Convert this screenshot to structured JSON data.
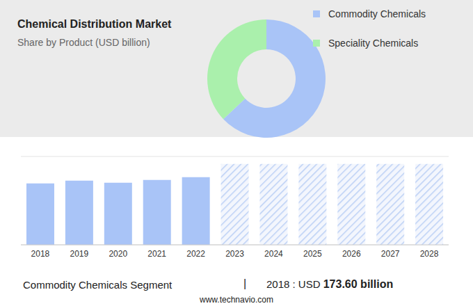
{
  "chart_data": [
    {
      "type": "pie",
      "title": "Chemical Distribution Market",
      "subtitle": "Share by Product (USD billion)",
      "categories": [
        "Commodity Chemicals",
        "Speciality Chemicals"
      ],
      "values": [
        63,
        37
      ],
      "colors": [
        "#a9c4f7",
        "#aaf0ac"
      ],
      "legend": "right"
    },
    {
      "type": "bar",
      "categories": [
        "2018",
        "2019",
        "2020",
        "2021",
        "2022",
        "2023",
        "2024",
        "2025",
        "2026",
        "2027",
        "2028"
      ],
      "values": [
        173.6,
        181.5,
        175.6,
        183.5,
        191.4,
        229,
        229,
        229,
        229,
        229,
        229
      ],
      "colors": [
        "#a9c4f7",
        "#a9c4f7",
        "#a9c4f7",
        "#a9c4f7",
        "#a9c4f7",
        "#bcd0f5",
        "#bcd0f5",
        "#bcd0f5",
        "#bcd0f5",
        "#bcd0f5",
        "#bcd0f5"
      ],
      "ylim": [
        0,
        250
      ],
      "yticks": [
        0,
        50,
        100,
        150,
        200,
        250
      ],
      "grid": true,
      "tick_labels": "x"
    }
  ],
  "footer": {
    "label": "Commodity Chemicals Segment",
    "separator": "|",
    "prefix": "2018 : USD",
    "value": "173.60 billion"
  },
  "source": "www.technavio.com"
}
